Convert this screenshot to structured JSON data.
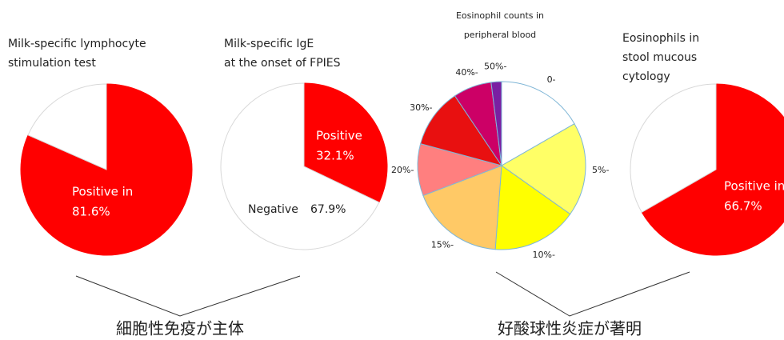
{
  "chart_data": [
    {
      "type": "pie",
      "title": [
        "Milk-specific lymphocyte",
        "stimulation test"
      ],
      "categories": [
        "Positive in",
        null
      ],
      "values": [
        81.6,
        18.4
      ],
      "value_labels": [
        "81.6%",
        null
      ],
      "colors": [
        "#ff0000",
        "#ffffff"
      ]
    },
    {
      "type": "pie",
      "title": [
        "Milk-specific IgE",
        "at the onset of FPIES"
      ],
      "categories": [
        "Positive",
        "Negative"
      ],
      "values": [
        32.1,
        67.9
      ],
      "value_labels": [
        "32.1%",
        "67.9%"
      ],
      "colors": [
        "#ff0000",
        "#ffffff"
      ]
    },
    {
      "type": "pie",
      "title": [
        "Eosinophil counts in",
        "peripheral blood"
      ],
      "categories": [
        "0-",
        "5%-",
        "10%-",
        "15%-",
        "20%-",
        "30%-",
        "40%-",
        "50%-"
      ],
      "values": [
        16.7,
        18.1,
        16.4,
        18,
        10,
        11.4,
        7.4,
        2.0
      ],
      "colors": [
        "#ffffff",
        "#ffff66",
        "#ffff00",
        "#ffc966",
        "#ff7f7f",
        "#e81010",
        "#cc0066",
        "#7a1fa2"
      ]
    },
    {
      "type": "pie",
      "title": [
        "Eosinophils in",
        "stool mucous",
        "cytology"
      ],
      "categories": [
        "Positive in",
        null
      ],
      "values": [
        66.7,
        33.3
      ],
      "value_labels": [
        "66.7%",
        null
      ],
      "colors": [
        "#ff0000",
        "#ffffff"
      ]
    }
  ],
  "captions": [
    "細胞性免疫が主体",
    "好酸球性炎症が著明"
  ]
}
